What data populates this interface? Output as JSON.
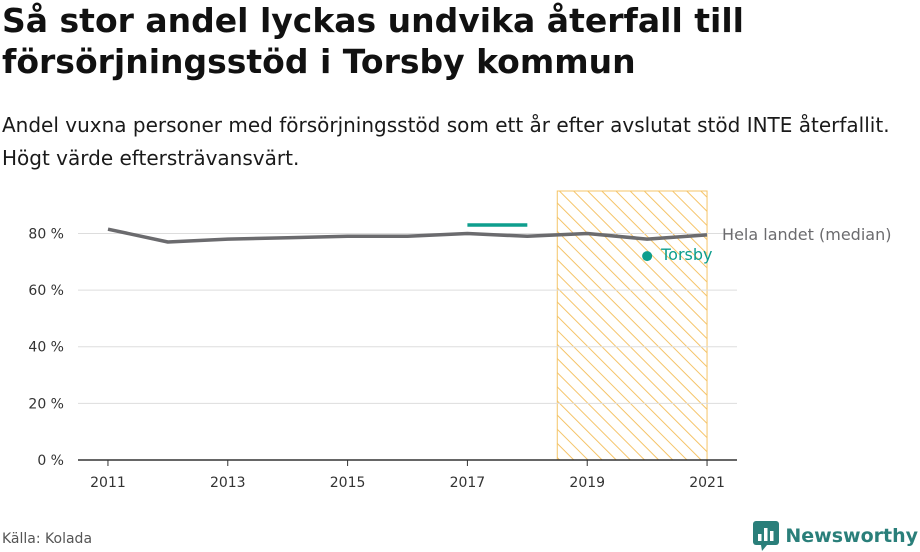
{
  "title": "Så stor andel lyckas undvika återfall till försörjningsstöd i Torsby kommun",
  "subtitle": "Andel vuxna personer med försörjningsstöd som ett år efter avslutat stöd INTE återfallit. Högt värde eftersträvansvärt.",
  "source": "Källa: Kolada",
  "brand": "Newsworthy",
  "colors": {
    "national": "#6b6b6e",
    "torsby": "#0e9e8d",
    "highlight": "#f5c469",
    "grid": "#dddddd",
    "axis": "#333333",
    "brand": "#2a7f7a"
  },
  "chart_data": {
    "type": "line",
    "ylim": [
      0,
      95
    ],
    "y_ticks": [
      0,
      20,
      40,
      60,
      80
    ],
    "y_tick_labels": [
      "0 %",
      "20 %",
      "40 %",
      "60 %",
      "80 %"
    ],
    "xlim": [
      2010.5,
      2021.5
    ],
    "x_ticks": [
      2011,
      2013,
      2015,
      2017,
      2019,
      2021
    ],
    "x_tick_labels": [
      "2011",
      "2013",
      "2015",
      "2017",
      "2019",
      "2021"
    ],
    "highlight_period": [
      2018.5,
      2021
    ],
    "series": [
      {
        "name": "Hela landet (median)",
        "style": "line",
        "points": [
          [
            2011,
            81.5
          ],
          [
            2012,
            77
          ],
          [
            2013,
            78
          ],
          [
            2014,
            78.5
          ],
          [
            2015,
            79
          ],
          [
            2016,
            79
          ],
          [
            2017,
            80
          ],
          [
            2018,
            79
          ],
          [
            2019,
            80
          ],
          [
            2020,
            78
          ],
          [
            2021,
            79.5
          ]
        ]
      },
      {
        "name": "Torsby",
        "style": "segments-and-dots",
        "points": [
          [
            2017,
            83
          ],
          [
            2018,
            83
          ],
          [
            2020,
            72
          ]
        ]
      }
    ]
  }
}
